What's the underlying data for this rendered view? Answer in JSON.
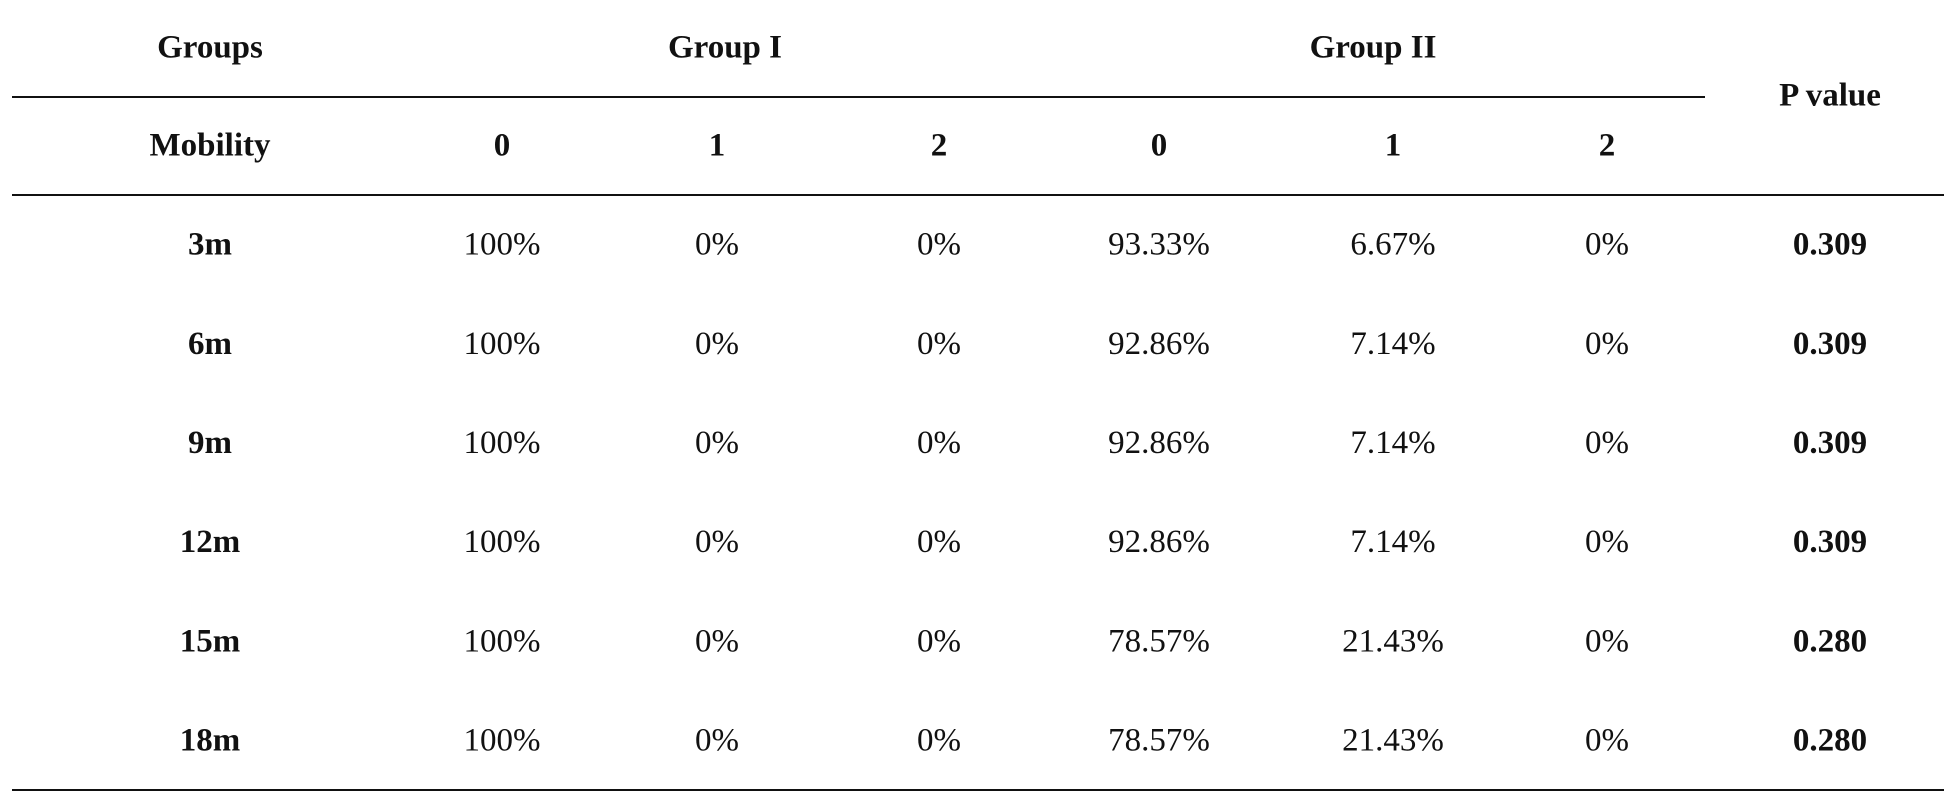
{
  "table": {
    "header": {
      "groups": "Groups",
      "group_i": "Group I",
      "group_ii": "Group II",
      "p_value": "P value"
    },
    "subheader": [
      "Mobility",
      "0",
      "1",
      "2",
      "0",
      "1",
      "2"
    ],
    "rows": [
      [
        "3m",
        "100%",
        "0%",
        "0%",
        "93.33%",
        "6.67%",
        "0%",
        "0.309"
      ],
      [
        "6m",
        "100%",
        "0%",
        "0%",
        "92.86%",
        "7.14%",
        "0%",
        "0.309"
      ],
      [
        "9m",
        "100%",
        "0%",
        "0%",
        "92.86%",
        "7.14%",
        "0%",
        "0.309"
      ],
      [
        "12m",
        "100%",
        "0%",
        "0%",
        "92.86%",
        "7.14%",
        "0%",
        "0.309"
      ],
      [
        "15m",
        "100%",
        "0%",
        "0%",
        "78.57%",
        "21.43%",
        "0%",
        "0.280"
      ],
      [
        "18m",
        "100%",
        "0%",
        "0%",
        "78.57%",
        "21.43%",
        "0%",
        "0.280"
      ]
    ]
  }
}
